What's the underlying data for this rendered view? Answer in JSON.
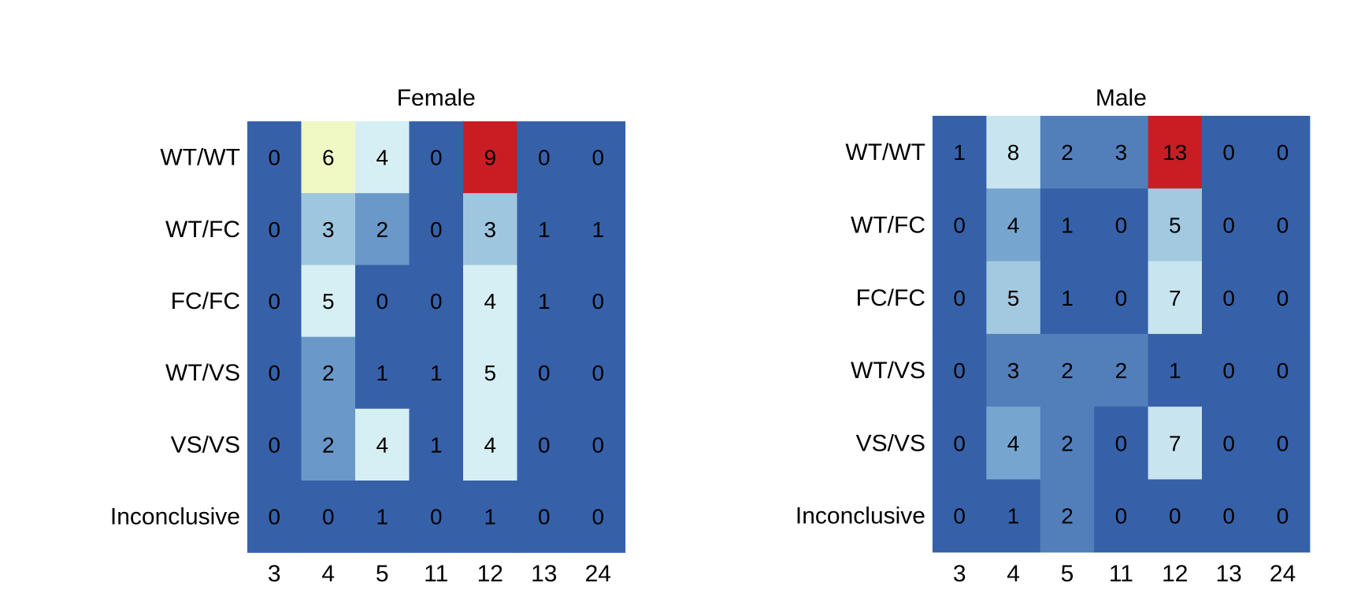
{
  "chart_data": [
    {
      "type": "heatmap",
      "title": "Female",
      "xlabel": "",
      "ylabel": "",
      "x": [
        "3",
        "4",
        "5",
        "11",
        "12",
        "13",
        "24"
      ],
      "y": [
        "WT/WT",
        "WT/FC",
        "FC/FC",
        "WT/VS",
        "VS/VS",
        "Inconclusive"
      ],
      "values": [
        [
          0,
          6,
          4,
          0,
          9,
          0,
          0
        ],
        [
          0,
          3,
          2,
          0,
          3,
          1,
          1
        ],
        [
          0,
          5,
          0,
          0,
          4,
          1,
          0
        ],
        [
          0,
          2,
          1,
          1,
          5,
          0,
          0
        ],
        [
          0,
          2,
          4,
          1,
          4,
          0,
          0
        ],
        [
          0,
          0,
          1,
          0,
          1,
          0,
          0
        ]
      ],
      "color_range": [
        0,
        9
      ],
      "colors": [
        "#3661a9",
        "#6a98c8",
        "#9fc6df",
        "#d6eff4",
        "#f0f8c4",
        "#f9f19c",
        "#fcd87d",
        "#c81e23"
      ],
      "legend": "none"
    },
    {
      "type": "heatmap",
      "title": "Male",
      "xlabel": "",
      "ylabel": "",
      "x": [
        "3",
        "4",
        "5",
        "11",
        "12",
        "13",
        "24"
      ],
      "y": [
        "WT/WT",
        "WT/FC",
        "FC/FC",
        "WT/VS",
        "VS/VS",
        "Inconclusive"
      ],
      "values": [
        [
          1,
          8,
          2,
          3,
          13,
          0,
          0
        ],
        [
          0,
          4,
          1,
          0,
          5,
          0,
          0
        ],
        [
          0,
          5,
          1,
          0,
          7,
          0,
          0
        ],
        [
          0,
          3,
          2,
          2,
          1,
          0,
          0
        ],
        [
          0,
          4,
          2,
          0,
          7,
          0,
          0
        ],
        [
          0,
          1,
          2,
          0,
          0,
          0,
          0
        ]
      ],
      "color_range": [
        0,
        13
      ],
      "colors": [
        "#3661a9",
        "#527fb9",
        "#76a6cf",
        "#a2c9df",
        "#c8e4ee",
        "#e3f2df",
        "#f9f5a6",
        "#fce18e",
        "#c81e23"
      ],
      "legend": "none"
    }
  ]
}
